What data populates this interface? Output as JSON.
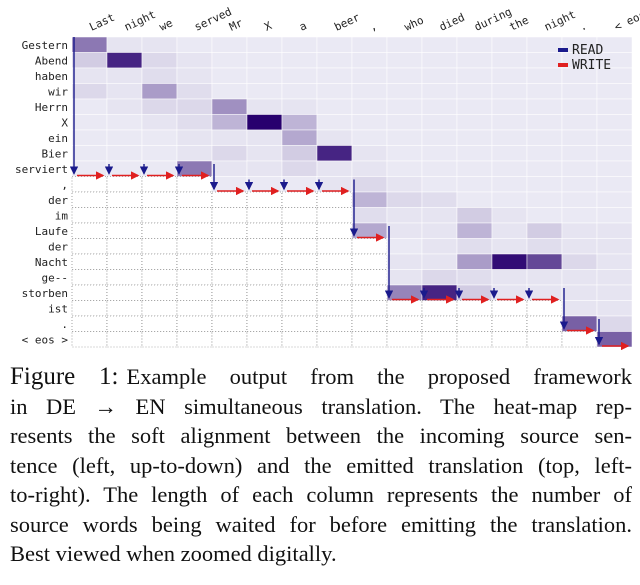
{
  "figure": {
    "columns": [
      "Last",
      "night",
      "we",
      "served",
      "Mr",
      "X",
      "a",
      "beer",
      ",",
      "who",
      "died",
      "during",
      "the",
      "night",
      ".",
      "< eos >"
    ],
    "rows": [
      "Gestern",
      "Abend",
      "haben",
      "wir",
      "Herrn",
      "X",
      "ein",
      "Bier",
      "serviert",
      ",",
      "der",
      "im",
      "Laufe",
      "der",
      "Nacht",
      "ge--",
      "storben",
      "ist",
      ".",
      "< eos >"
    ],
    "values": [
      [
        0.5,
        0.05,
        0.05,
        0.03,
        0.03,
        0.03,
        0.03,
        0.03,
        0.03,
        0.03,
        0.03,
        0.03,
        0.03,
        0.03,
        0.03,
        0.03
      ],
      [
        0.15,
        0.85,
        0.1,
        0.05,
        0.03,
        0.03,
        0.03,
        0.03,
        0.03,
        0.03,
        0.03,
        0.03,
        0.03,
        0.03,
        0.03,
        0.03
      ],
      [
        0.05,
        0.05,
        0.08,
        0.05,
        0.03,
        0.03,
        0.03,
        0.03,
        0.03,
        0.03,
        0.03,
        0.03,
        0.03,
        0.03,
        0.03,
        0.03
      ],
      [
        0.1,
        0.05,
        0.35,
        0.08,
        0.03,
        0.03,
        0.03,
        0.03,
        0.03,
        0.03,
        0.03,
        0.03,
        0.03,
        0.03,
        0.03,
        0.03
      ],
      [
        0.03,
        0.05,
        0.1,
        0.1,
        0.4,
        0.05,
        0.05,
        0.03,
        0.03,
        0.03,
        0.03,
        0.03,
        0.03,
        0.03,
        0.03,
        0.03
      ],
      [
        0.03,
        0.03,
        0.05,
        0.08,
        0.25,
        1.0,
        0.25,
        0.03,
        0.03,
        0.03,
        0.03,
        0.03,
        0.03,
        0.03,
        0.03,
        0.03
      ],
      [
        0.03,
        0.03,
        0.03,
        0.05,
        0.05,
        0.05,
        0.3,
        0.05,
        0.03,
        0.03,
        0.03,
        0.03,
        0.03,
        0.03,
        0.03,
        0.03
      ],
      [
        0.03,
        0.03,
        0.03,
        0.05,
        0.1,
        0.05,
        0.15,
        0.85,
        0.05,
        0.03,
        0.03,
        0.03,
        0.03,
        0.03,
        0.03,
        0.03
      ],
      [
        0.03,
        0.03,
        0.03,
        0.5,
        0.05,
        0.05,
        0.1,
        0.05,
        0.05,
        0.03,
        0.03,
        0.03,
        0.03,
        0.03,
        0.03,
        0.03
      ],
      [
        null,
        null,
        null,
        null,
        0.03,
        0.03,
        0.03,
        0.05,
        0.1,
        0.05,
        0.03,
        0.03,
        0.03,
        0.03,
        0.03,
        0.03
      ],
      [
        null,
        null,
        null,
        null,
        null,
        null,
        null,
        null,
        0.25,
        0.1,
        0.08,
        0.03,
        0.03,
        0.03,
        0.03,
        0.03
      ],
      [
        null,
        null,
        null,
        null,
        null,
        null,
        null,
        null,
        0.08,
        0.05,
        0.05,
        0.15,
        0.05,
        0.03,
        0.03,
        0.03
      ],
      [
        null,
        null,
        null,
        null,
        null,
        null,
        null,
        null,
        0.3,
        0.05,
        0.05,
        0.25,
        0.05,
        0.15,
        0.05,
        0.05
      ],
      [
        null,
        null,
        null,
        null,
        null,
        null,
        null,
        null,
        null,
        0.03,
        0.05,
        0.08,
        0.05,
        0.08,
        0.05,
        0.05
      ],
      [
        null,
        null,
        null,
        null,
        null,
        null,
        null,
        null,
        null,
        0.05,
        0.05,
        0.35,
        0.95,
        0.7,
        0.1,
        0.05
      ],
      [
        null,
        null,
        null,
        null,
        null,
        null,
        null,
        null,
        null,
        0.05,
        0.1,
        0.08,
        0.05,
        0.05,
        0.05,
        0.05
      ],
      [
        null,
        null,
        null,
        null,
        null,
        null,
        null,
        null,
        null,
        0.45,
        0.85,
        0.15,
        0.05,
        0.05,
        0.05,
        0.05
      ],
      [
        null,
        null,
        null,
        null,
        null,
        null,
        null,
        null,
        null,
        null,
        null,
        null,
        null,
        null,
        0.05,
        0.05
      ],
      [
        null,
        null,
        null,
        null,
        null,
        null,
        null,
        null,
        null,
        null,
        null,
        null,
        null,
        null,
        0.6,
        0.1
      ],
      [
        null,
        null,
        null,
        null,
        null,
        null,
        null,
        null,
        null,
        null,
        null,
        null,
        null,
        null,
        null,
        0.6
      ]
    ],
    "legend": [
      {
        "name": "READ",
        "color": "#1a1a8c"
      },
      {
        "name": "WRITE",
        "color": "#e02020"
      }
    ]
  },
  "caption": {
    "label": "Figure 1:",
    "lines": [
      "Example output from the proposed framework",
      "in DE → EN simultaneous translation. The heat-map rep-",
      "resents the soft alignment between the incoming source sen-",
      "tence (left, up-to-down) and the emitted translation (top, left-",
      "to-right). The length of each column represents the number of",
      "source words being waited for before emitting the translation.",
      "Best viewed when zoomed digitally."
    ]
  }
}
